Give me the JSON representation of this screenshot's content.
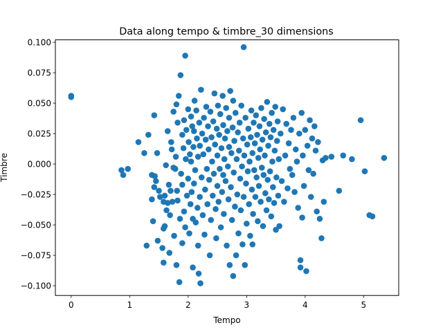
{
  "chart_data": {
    "type": "scatter",
    "title": "Data along tempo & timbre_30 dimensions",
    "xlabel": "Tempo",
    "ylabel": "Timbre",
    "xlim": [
      -0.27,
      5.6
    ],
    "ylim": [
      -0.108,
      0.102
    ],
    "xticks": [
      0,
      1,
      2,
      3,
      4,
      5
    ],
    "xtick_labels": [
      "0",
      "1",
      "2",
      "3",
      "4",
      "5"
    ],
    "yticks": [
      -0.1,
      -0.075,
      -0.05,
      -0.025,
      0.0,
      0.025,
      0.05,
      0.075,
      0.1
    ],
    "ytick_labels": [
      "−0.100",
      "−0.075",
      "−0.050",
      "−0.025",
      "0.000",
      "0.025",
      "0.050",
      "0.075",
      "0.100"
    ],
    "grid": false,
    "marker_color": "#1f77b4",
    "series": [
      {
        "points": [
          [
            0.0,
            0.056
          ],
          [
            0.0,
            0.055
          ],
          [
            0.86,
            -0.005
          ],
          [
            0.89,
            -0.009
          ],
          [
            0.97,
            -0.004
          ],
          [
            1.15,
            0.018
          ],
          [
            1.25,
            0.009
          ],
          [
            1.29,
            -0.067
          ],
          [
            1.32,
            0.024
          ],
          [
            1.38,
            -0.029
          ],
          [
            1.4,
            -0.047
          ],
          [
            1.38,
            -0.009
          ],
          [
            1.43,
            -0.01
          ],
          [
            1.42,
            -0.019
          ],
          [
            1.45,
            -0.014
          ],
          [
            1.42,
            0.04
          ],
          [
            1.47,
            0.009
          ],
          [
            1.48,
            -0.063
          ],
          [
            1.5,
            -0.022
          ],
          [
            1.52,
            -0.027
          ],
          [
            1.56,
            -0.069
          ],
          [
            1.58,
            -0.081
          ],
          [
            1.58,
            -0.053
          ],
          [
            1.58,
            -0.031
          ],
          [
            1.6,
            -0.051
          ],
          [
            1.6,
            -0.026
          ],
          [
            1.62,
            -0.001
          ],
          [
            1.63,
            -0.038
          ],
          [
            1.65,
            -0.032
          ],
          [
            1.65,
            0.027
          ],
          [
            1.67,
            -0.017
          ],
          [
            1.68,
            -0.073
          ],
          [
            1.69,
            -0.042
          ],
          [
            1.7,
            -0.022
          ],
          [
            1.71,
            0.018
          ],
          [
            1.72,
            0.012
          ],
          [
            1.73,
            -0.031
          ],
          [
            1.75,
            0.043
          ],
          [
            1.75,
            -0.003
          ],
          [
            1.76,
            -0.059
          ],
          [
            1.78,
            -0.004
          ],
          [
            1.79,
            0.006
          ],
          [
            1.8,
            -0.083
          ],
          [
            1.8,
            0.049
          ],
          [
            1.81,
            -0.022
          ],
          [
            1.82,
            0.034
          ],
          [
            1.82,
            -0.03
          ],
          [
            1.84,
            0.056
          ],
          [
            1.85,
            -0.097
          ],
          [
            1.86,
            -0.045
          ],
          [
            1.87,
            0.073
          ],
          [
            1.88,
            -0.008
          ],
          [
            1.9,
            0.024
          ],
          [
            1.9,
            -0.065
          ],
          [
            1.9,
            -0.017
          ],
          [
            1.92,
            0.013
          ],
          [
            1.93,
            0.036
          ],
          [
            1.93,
            -0.039
          ],
          [
            1.95,
            0.089
          ],
          [
            1.95,
            -0.052
          ],
          [
            1.96,
            0.004
          ],
          [
            1.97,
            0.028
          ],
          [
            1.98,
            -0.026
          ],
          [
            2.0,
            0.045
          ],
          [
            2.0,
            -0.012
          ],
          [
            2.01,
            0.018
          ],
          [
            2.02,
            -0.057
          ],
          [
            2.03,
            0.008
          ],
          [
            2.04,
            -0.033
          ],
          [
            2.05,
            0.039
          ],
          [
            2.05,
            0.002
          ],
          [
            2.06,
            -0.023
          ],
          [
            2.07,
            0.031
          ],
          [
            2.08,
            -0.045
          ],
          [
            2.08,
            -0.085
          ],
          [
            2.09,
            0.014
          ],
          [
            2.1,
            0.027
          ],
          [
            2.1,
            -0.016
          ],
          [
            2.11,
            0.052
          ],
          [
            2.12,
            -0.005
          ],
          [
            2.13,
            -0.048
          ],
          [
            2.14,
            0.044
          ],
          [
            2.15,
            0.021
          ],
          [
            2.16,
            -0.036
          ],
          [
            2.17,
            -0.067
          ],
          [
            2.17,
            0.006
          ],
          [
            2.18,
            -0.09
          ],
          [
            2.19,
            0.034
          ],
          [
            2.2,
            -0.027
          ],
          [
            2.2,
            0.015
          ],
          [
            2.21,
            -0.098
          ],
          [
            2.22,
            0.061
          ],
          [
            2.23,
            -0.011
          ],
          [
            2.24,
            0.025
          ],
          [
            2.25,
            -0.042
          ],
          [
            2.26,
            0.008
          ],
          [
            2.27,
            0.038
          ],
          [
            2.28,
            -0.058
          ],
          [
            2.29,
            -0.021
          ],
          [
            2.3,
            0.02
          ],
          [
            2.31,
            0.047
          ],
          [
            2.32,
            -0.004
          ],
          [
            2.33,
            -0.033
          ],
          [
            2.34,
            0.031
          ],
          [
            2.35,
            0.012
          ],
          [
            2.36,
            -0.013
          ],
          [
            2.37,
            -0.075
          ],
          [
            2.38,
            0.043
          ],
          [
            2.39,
            -0.046
          ],
          [
            2.4,
            0.022
          ],
          [
            2.41,
            0.002
          ],
          [
            2.42,
            -0.026
          ],
          [
            2.43,
            0.035
          ],
          [
            2.44,
            -0.008
          ],
          [
            2.45,
            0.058
          ],
          [
            2.46,
            0.016
          ],
          [
            2.47,
            -0.037
          ],
          [
            2.48,
            -0.061
          ],
          [
            2.49,
            0.029
          ],
          [
            2.5,
            0.007
          ],
          [
            2.5,
            -0.018
          ],
          [
            2.51,
            0.048
          ],
          [
            2.52,
            -0.031
          ],
          [
            2.53,
            0.024
          ],
          [
            2.54,
            -0.004
          ],
          [
            2.55,
            0.041
          ],
          [
            2.56,
            -0.052
          ],
          [
            2.57,
            0.013
          ],
          [
            2.58,
            -0.023
          ],
          [
            2.59,
            0.056
          ],
          [
            2.6,
            0.032
          ],
          [
            2.6,
            -0.009
          ],
          [
            2.61,
            -0.041
          ],
          [
            2.62,
            0.004
          ],
          [
            2.63,
            0.021
          ],
          [
            2.64,
            -0.014
          ],
          [
            2.65,
            0.046
          ],
          [
            2.66,
            -0.067
          ],
          [
            2.67,
            0.027
          ],
          [
            2.68,
            -0.002
          ],
          [
            2.69,
            -0.029
          ],
          [
            2.7,
            0.014
          ],
          [
            2.7,
            0.038
          ],
          [
            2.71,
            -0.083
          ],
          [
            2.72,
            0.06
          ],
          [
            2.73,
            -0.019
          ],
          [
            2.74,
            0.009
          ],
          [
            2.75,
            -0.046
          ],
          [
            2.76,
            0.03
          ],
          [
            2.77,
            -0.092
          ],
          [
            2.77,
            0.052
          ],
          [
            2.78,
            -0.007
          ],
          [
            2.79,
            0.019
          ],
          [
            2.8,
            -0.035
          ],
          [
            2.81,
            0.042
          ],
          [
            2.82,
            -0.075
          ],
          [
            2.83,
            0.004
          ],
          [
            2.84,
            -0.025
          ],
          [
            2.85,
            0.026
          ],
          [
            2.86,
            -0.057
          ],
          [
            2.87,
            0.011
          ],
          [
            2.88,
            0.034
          ],
          [
            2.89,
            -0.012
          ],
          [
            2.9,
            -0.038
          ],
          [
            2.91,
            0.048
          ],
          [
            2.92,
            -0.002
          ],
          [
            2.93,
            -0.066
          ],
          [
            2.94,
            0.021
          ],
          [
            2.95,
            0.096
          ],
          [
            2.95,
            -0.027
          ],
          [
            2.96,
            0.007
          ],
          [
            2.97,
            -0.083
          ],
          [
            2.98,
            0.038
          ],
          [
            2.99,
            -0.016
          ],
          [
            3.0,
            -0.049
          ],
          [
            3.01,
            0.016
          ],
          [
            3.02,
            -0.006
          ],
          [
            3.03,
            0.029
          ],
          [
            3.04,
            -0.033
          ],
          [
            3.05,
            0.002
          ],
          [
            3.06,
            -0.059
          ],
          [
            3.07,
            0.022
          ],
          [
            3.08,
            0.044
          ],
          [
            3.09,
            -0.021
          ],
          [
            3.1,
            0.009
          ],
          [
            3.1,
            -0.066
          ],
          [
            3.11,
            -0.041
          ],
          [
            3.12,
            0.034
          ],
          [
            3.13,
            -0.005
          ],
          [
            3.14,
            0.017
          ],
          [
            3.15,
            -0.027
          ],
          [
            3.16,
            0.04
          ],
          [
            3.17,
            -0.011
          ],
          [
            3.18,
            0.024
          ],
          [
            3.19,
            -0.047
          ],
          [
            3.2,
            0.005
          ],
          [
            3.21,
            -0.018
          ],
          [
            3.22,
            0.031
          ],
          [
            3.23,
            0.012
          ],
          [
            3.24,
            -0.031
          ],
          [
            3.25,
            0.046
          ],
          [
            3.26,
            -0.003
          ],
          [
            3.27,
            0.02
          ],
          [
            3.28,
            -0.051
          ],
          [
            3.29,
            -0.009
          ],
          [
            3.3,
            0.037
          ],
          [
            3.31,
            0.007
          ],
          [
            3.32,
            -0.024
          ],
          [
            3.33,
            0.026
          ],
          [
            3.34,
            -0.038
          ],
          [
            3.35,
            0.051
          ],
          [
            3.36,
            -0.013
          ],
          [
            3.37,
            0.015
          ],
          [
            3.38,
            -0.029
          ],
          [
            3.39,
            0.033
          ],
          [
            3.4,
            -0.006
          ],
          [
            3.41,
            0.022
          ],
          [
            3.42,
            -0.043
          ],
          [
            3.43,
            0.042
          ],
          [
            3.44,
            0.002
          ],
          [
            3.45,
            -0.019
          ],
          [
            3.46,
            0.028
          ],
          [
            3.47,
            -0.032
          ],
          [
            3.48,
            0.011
          ],
          [
            3.49,
            0.047
          ],
          [
            3.5,
            -0.054
          ],
          [
            3.51,
            -0.011
          ],
          [
            3.52,
            0.019
          ],
          [
            3.53,
            0.035
          ],
          [
            3.54,
            -0.026
          ],
          [
            3.55,
            0.004
          ],
          [
            3.56,
            -0.051
          ],
          [
            3.58,
            0.025
          ],
          [
            3.6,
            -0.014
          ],
          [
            3.62,
            0.045
          ],
          [
            3.64,
            -0.031
          ],
          [
            3.66,
            0.007
          ],
          [
            3.68,
            0.033
          ],
          [
            3.7,
            -0.02
          ],
          [
            3.72,
            0.017
          ],
          [
            3.74,
            -0.004
          ],
          [
            3.76,
            0.028
          ],
          [
            3.78,
            -0.009
          ],
          [
            3.8,
            0.038
          ],
          [
            3.82,
            -0.023
          ],
          [
            3.84,
            0.012
          ],
          [
            3.86,
            0.002
          ],
          [
            3.88,
            -0.036
          ],
          [
            3.9,
            0.025
          ],
          [
            3.92,
            -0.079
          ],
          [
            3.92,
            -0.085
          ],
          [
            3.94,
            0.042
          ],
          [
            3.95,
            -0.044
          ],
          [
            3.96,
            0.007
          ],
          [
            3.98,
            -0.018
          ],
          [
            4.0,
            0.028
          ],
          [
            4.02,
            -0.088
          ],
          [
            4.04,
            0.015
          ],
          [
            4.06,
            -0.005
          ],
          [
            4.08,
            0.036
          ],
          [
            4.1,
            -0.027
          ],
          [
            4.12,
            0.021
          ],
          [
            4.14,
            -0.008
          ],
          [
            4.16,
            0.031
          ],
          [
            4.18,
            0.011
          ],
          [
            4.2,
            -0.039
          ],
          [
            4.22,
            0.018
          ],
          [
            4.25,
            -0.045
          ],
          [
            4.28,
            -0.061
          ],
          [
            4.3,
            0.003
          ],
          [
            4.32,
            -0.031
          ],
          [
            4.35,
            0.005
          ],
          [
            4.45,
            0.006
          ],
          [
            4.58,
            -0.022
          ],
          [
            4.65,
            0.007
          ],
          [
            4.8,
            0.004
          ],
          [
            4.95,
            0.036
          ],
          [
            5.02,
            -0.006
          ],
          [
            5.1,
            -0.042
          ],
          [
            5.15,
            -0.043
          ],
          [
            5.35,
            0.005
          ]
        ]
      }
    ]
  }
}
